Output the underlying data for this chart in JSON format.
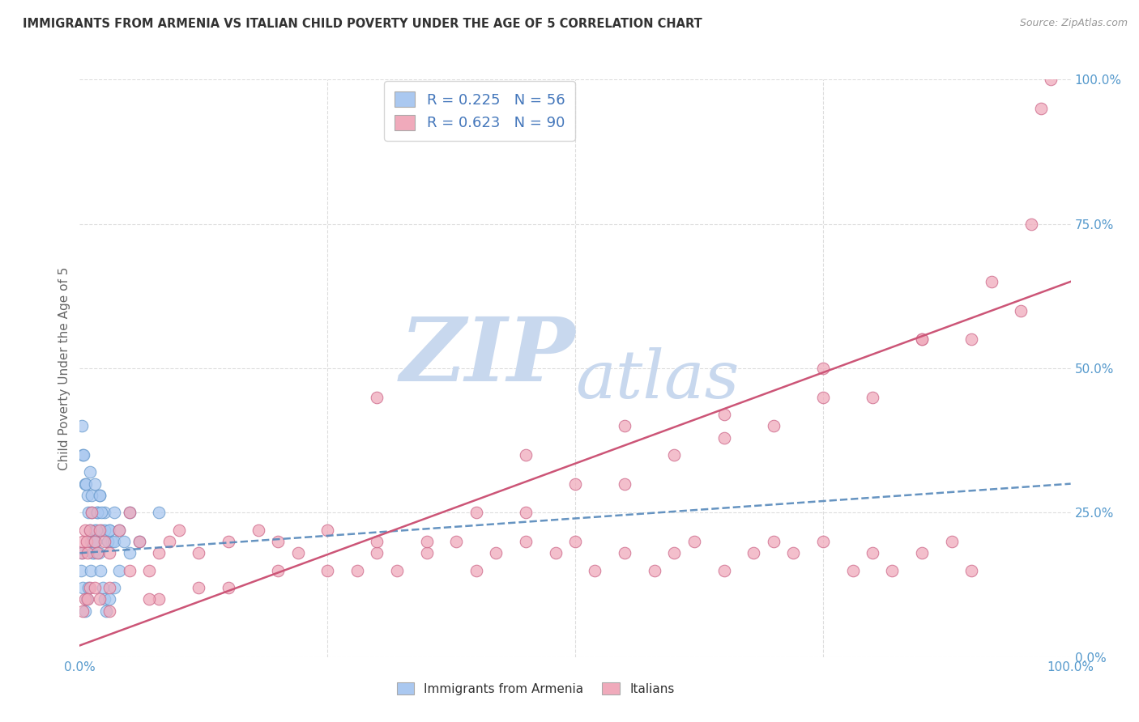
{
  "title": "IMMIGRANTS FROM ARMENIA VS ITALIAN CHILD POVERTY UNDER THE AGE OF 5 CORRELATION CHART",
  "source": "Source: ZipAtlas.com",
  "ylabel": "Child Poverty Under the Age of 5",
  "ytick_labels": [
    "0.0%",
    "25.0%",
    "50.0%",
    "75.0%",
    "100.0%"
  ],
  "ytick_values": [
    0,
    25,
    50,
    75,
    100
  ],
  "xtick_labels": [
    "0.0%",
    "100.0%"
  ],
  "xtick_values": [
    0,
    100
  ],
  "legend1_label": "R = 0.225   N = 56",
  "legend2_label": "R = 0.623   N = 90",
  "series1_name": "Immigrants from Armenia",
  "series2_name": "Italians",
  "series1_color": "#aac8f0",
  "series2_color": "#f0aabb",
  "series1_edge": "#6699cc",
  "series2_edge": "#cc6688",
  "line1_color": "#5588bb",
  "line2_color": "#cc5577",
  "legend_text_color": "#4477bb",
  "watermark_color": "#c8d8ee",
  "background_color": "#ffffff",
  "grid_color": "#dddddd",
  "ylabel_color": "#666666",
  "tick_color": "#5599cc",
  "series1_x": [
    0.3,
    0.5,
    0.8,
    0.9,
    1.0,
    1.1,
    1.2,
    1.3,
    1.4,
    1.5,
    1.6,
    1.8,
    2.0,
    2.2,
    2.5,
    2.8,
    3.0,
    3.2,
    3.5,
    0.2,
    0.4,
    0.6,
    1.0,
    1.2,
    1.5,
    1.8,
    2.0,
    2.2,
    2.5,
    2.8,
    3.0,
    3.5,
    4.0,
    4.5,
    5.0,
    0.1,
    0.2,
    0.3,
    0.5,
    0.7,
    0.9,
    1.1,
    1.3,
    1.5,
    1.7,
    1.9,
    2.1,
    2.3,
    2.5,
    2.7,
    3.0,
    3.5,
    4.0,
    5.0,
    6.0,
    8.0
  ],
  "series1_y": [
    35,
    30,
    28,
    25,
    22,
    20,
    25,
    20,
    18,
    22,
    20,
    25,
    28,
    22,
    25,
    20,
    22,
    20,
    25,
    40,
    35,
    30,
    32,
    28,
    30,
    25,
    28,
    25,
    22,
    20,
    22,
    20,
    22,
    20,
    25,
    15,
    18,
    12,
    8,
    10,
    12,
    15,
    18,
    20,
    22,
    18,
    15,
    12,
    10,
    8,
    10,
    12,
    15,
    18,
    20,
    25
  ],
  "series2_x": [
    0.2,
    0.3,
    0.5,
    0.7,
    0.8,
    1.0,
    1.2,
    1.5,
    1.8,
    2.0,
    2.5,
    3.0,
    4.0,
    5.0,
    6.0,
    7.0,
    8.0,
    9.0,
    10.0,
    12.0,
    15.0,
    18.0,
    20.0,
    22.0,
    25.0,
    28.0,
    30.0,
    32.0,
    35.0,
    38.0,
    40.0,
    42.0,
    45.0,
    48.0,
    50.0,
    52.0,
    55.0,
    58.0,
    60.0,
    62.0,
    65.0,
    68.0,
    70.0,
    72.0,
    75.0,
    78.0,
    80.0,
    82.0,
    85.0,
    88.0,
    90.0,
    0.5,
    1.0,
    2.0,
    3.0,
    5.0,
    8.0,
    12.0,
    20.0,
    30.0,
    40.0,
    50.0,
    60.0,
    70.0,
    80.0,
    90.0,
    95.0,
    97.0,
    98.0,
    30.0,
    45.0,
    55.0,
    65.0,
    75.0,
    85.0,
    0.3,
    0.8,
    1.5,
    3.0,
    7.0,
    15.0,
    25.0,
    35.0,
    45.0,
    55.0,
    65.0,
    75.0,
    85.0,
    92.0,
    96.0
  ],
  "series2_y": [
    18,
    20,
    22,
    20,
    18,
    22,
    25,
    20,
    18,
    22,
    20,
    18,
    22,
    25,
    20,
    15,
    18,
    20,
    22,
    18,
    20,
    22,
    20,
    18,
    22,
    15,
    18,
    15,
    18,
    20,
    15,
    18,
    20,
    18,
    20,
    15,
    18,
    15,
    18,
    20,
    15,
    18,
    20,
    18,
    20,
    15,
    18,
    15,
    18,
    20,
    15,
    10,
    12,
    10,
    12,
    15,
    10,
    12,
    15,
    20,
    25,
    30,
    35,
    40,
    45,
    55,
    60,
    95,
    100,
    45,
    35,
    40,
    42,
    50,
    55,
    8,
    10,
    12,
    8,
    10,
    12,
    15,
    20,
    25,
    30,
    38,
    45,
    55,
    65,
    75
  ]
}
